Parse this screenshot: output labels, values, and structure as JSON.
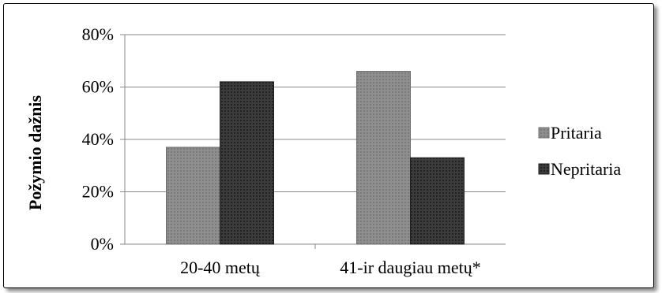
{
  "chart_data": {
    "type": "bar",
    "title": "",
    "xlabel": "",
    "ylabel": "Požymio dažnis",
    "categories": [
      "20-40 metų",
      "41-ir daugiau metų*"
    ],
    "series": [
      {
        "name": "Pritaria",
        "values": [
          37,
          66
        ],
        "color": "#8c8c8c"
      },
      {
        "name": "Nepritaria",
        "values": [
          62,
          33
        ],
        "color": "#3a3a3a"
      }
    ],
    "ylim": [
      0,
      80
    ],
    "yticks": [
      "0%",
      "20%",
      "40%",
      "60%",
      "80%"
    ],
    "ytick_values": [
      0,
      20,
      40,
      60,
      80
    ],
    "grid": true,
    "legend": "right"
  }
}
